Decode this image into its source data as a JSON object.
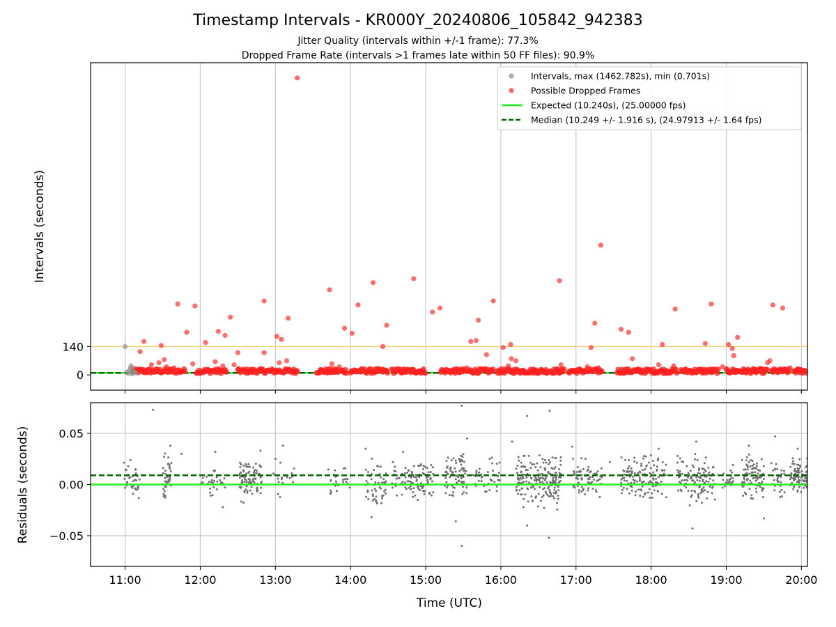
{
  "chart_data": [
    {
      "type": "scatter",
      "title": "Timestamp Intervals - KR000Y_20240806_105842_942383",
      "subtitle_lines": [
        "Jitter Quality (intervals within +/-1 frame): 77.3%",
        "Dropped Frame Rate (intervals >1 frames late within 50 FF files): 90.9%"
      ],
      "ylabel": "Intervals (seconds)",
      "yticks": [
        {
          "value": 0,
          "label": "0"
        },
        {
          "value": 140,
          "label": "140"
        }
      ],
      "ylim": [
        -75,
        1540
      ],
      "xlim": [
        10.54,
        20.08
      ],
      "xticks": [
        {
          "value": 11,
          "label": "11:00"
        },
        {
          "value": 12,
          "label": "12:00"
        },
        {
          "value": 13,
          "label": "13:00"
        },
        {
          "value": 14,
          "label": "14:00"
        },
        {
          "value": 15,
          "label": "15:00"
        },
        {
          "value": 16,
          "label": "16:00"
        },
        {
          "value": 17,
          "label": "17:00"
        },
        {
          "value": 18,
          "label": "18:00"
        },
        {
          "value": 19,
          "label": "19:00"
        },
        {
          "value": 20,
          "label": "20:00"
        }
      ],
      "grid": "vertical",
      "threshold_line": {
        "value": 140,
        "color": "#f5d27a"
      },
      "legend_position": "top-right",
      "legend": [
        {
          "label": "Intervals, max (1462.782s), min (0.701s)",
          "marker": "dot",
          "color": "#909090"
        },
        {
          "label": "Possible Dropped Frames",
          "marker": "dot",
          "color": "#ff3030"
        },
        {
          "label": "Expected (10.240s), (25.00000 fps)",
          "marker": "solid-line",
          "color": "#22ee22"
        },
        {
          "label": "Median (10.249 +/- 1.916 s), (24.97913 +/- 1.64 fps)",
          "marker": "dashed-line",
          "color": "#006400"
        }
      ],
      "lines": [
        {
          "name": "Expected",
          "y": 10.24,
          "style": "solid",
          "color": "#22ee22"
        },
        {
          "name": "Median",
          "y": 10.249,
          "style": "dashed",
          "color": "#006400"
        }
      ],
      "series": [
        {
          "name": "Intervals",
          "color": "#909090",
          "points": [
            [
              11.0,
              140
            ],
            [
              11.02,
              12
            ],
            [
              11.05,
              20
            ],
            [
              11.07,
              35
            ],
            [
              11.08,
              45
            ],
            [
              11.1,
              28
            ],
            [
              11.12,
              15
            ],
            [
              11.04,
              8
            ],
            [
              11.09,
              5
            ],
            [
              11.14,
              10
            ]
          ]
        },
        {
          "name": "Possible Dropped Frames",
          "color": "#ff3030",
          "points": [
            [
              11.25,
              165
            ],
            [
              11.48,
              145
            ],
            [
              11.52,
              75
            ],
            [
              11.7,
              350
            ],
            [
              11.93,
              340
            ],
            [
              11.82,
              210
            ],
            [
              12.07,
              160
            ],
            [
              12.24,
              215
            ],
            [
              12.33,
              195
            ],
            [
              12.4,
              285
            ],
            [
              12.5,
              110
            ],
            [
              12.85,
              365
            ],
            [
              12.85,
              110
            ],
            [
              13.02,
              190
            ],
            [
              13.08,
              175
            ],
            [
              13.17,
              280
            ],
            [
              13.29,
              1465
            ],
            [
              13.72,
              420
            ],
            [
              13.92,
              230
            ],
            [
              14.02,
              205
            ],
            [
              14.1,
              345
            ],
            [
              14.3,
              455
            ],
            [
              14.48,
              245
            ],
            [
              14.43,
              140
            ],
            [
              14.84,
              475
            ],
            [
              15.09,
              310
            ],
            [
              15.19,
              330
            ],
            [
              15.6,
              165
            ],
            [
              15.7,
              270
            ],
            [
              15.81,
              100
            ],
            [
              15.67,
              170
            ],
            [
              15.9,
              365
            ],
            [
              16.03,
              135
            ],
            [
              16.13,
              150
            ],
            [
              16.14,
              80
            ],
            [
              16.2,
              70
            ],
            [
              16.78,
              465
            ],
            [
              17.2,
              135
            ],
            [
              17.25,
              255
            ],
            [
              17.33,
              640
            ],
            [
              17.6,
              225
            ],
            [
              17.7,
              210
            ],
            [
              17.75,
              80
            ],
            [
              18.15,
              150
            ],
            [
              18.32,
              325
            ],
            [
              18.72,
              155
            ],
            [
              18.8,
              350
            ],
            [
              19.03,
              150
            ],
            [
              19.08,
              130
            ],
            [
              19.15,
              185
            ],
            [
              19.1,
              95
            ],
            [
              19.58,
              70
            ],
            [
              19.62,
              345
            ],
            [
              19.75,
              330
            ],
            [
              11.2,
              115
            ],
            [
              11.35,
              50
            ],
            [
              11.45,
              60
            ],
            [
              11.55,
              40
            ],
            [
              11.65,
              35
            ],
            [
              11.9,
              55
            ],
            [
              12.2,
              65
            ],
            [
              12.3,
              45
            ],
            [
              12.45,
              50
            ],
            [
              13.05,
              60
            ],
            [
              13.15,
              70
            ],
            [
              13.75,
              55
            ],
            [
              13.85,
              40
            ],
            [
              14.6,
              30
            ],
            [
              15.55,
              35
            ],
            [
              16.1,
              45
            ],
            [
              16.8,
              50
            ],
            [
              17.15,
              40
            ],
            [
              17.3,
              35
            ],
            [
              18.1,
              50
            ],
            [
              18.3,
              45
            ],
            [
              18.95,
              40
            ],
            [
              19.55,
              60
            ],
            [
              19.85,
              35
            ]
          ]
        }
      ]
    },
    {
      "type": "scatter",
      "ylabel": "Residuals (seconds)",
      "xlabel": "Time (UTC)",
      "ylim": [
        -0.08,
        0.08
      ],
      "xlim": [
        10.54,
        20.08
      ],
      "yticks": [
        {
          "value": 0.05,
          "label": "0.05"
        },
        {
          "value": 0.0,
          "label": "0.00"
        },
        {
          "value": -0.05,
          "label": "−0.05"
        }
      ],
      "xticks": [
        {
          "value": 11,
          "label": "11:00"
        },
        {
          "value": 12,
          "label": "12:00"
        },
        {
          "value": 13,
          "label": "13:00"
        },
        {
          "value": 14,
          "label": "14:00"
        },
        {
          "value": 15,
          "label": "15:00"
        },
        {
          "value": 16,
          "label": "16:00"
        },
        {
          "value": 17,
          "label": "17:00"
        },
        {
          "value": 18,
          "label": "18:00"
        },
        {
          "value": 19,
          "label": "19:00"
        },
        {
          "value": 20,
          "label": "20:00"
        }
      ],
      "grid": "both",
      "lines": [
        {
          "name": "Expected",
          "y": 0.0,
          "style": "solid",
          "color": "#22ee22"
        },
        {
          "name": "Median",
          "y": 0.009,
          "style": "dashed",
          "color": "#006400"
        }
      ],
      "series": [
        {
          "name": "Residuals",
          "color": "#707070",
          "points": [
            [
              11.37,
              0.073
            ],
            [
              15.48,
              0.077
            ],
            [
              16.35,
              0.067
            ],
            [
              16.65,
              0.072
            ],
            [
              15.48,
              -0.06
            ],
            [
              16.64,
              -0.052
            ],
            [
              18.55,
              -0.043
            ],
            [
              15.4,
              -0.036
            ],
            [
              16.35,
              -0.04
            ],
            [
              14.28,
              -0.032
            ],
            [
              19.5,
              -0.033
            ],
            [
              16.3,
              -0.022
            ],
            [
              12.3,
              -0.022
            ],
            [
              13.0,
              0.025
            ],
            [
              13.1,
              0.038
            ],
            [
              11.6,
              0.038
            ],
            [
              11.75,
              0.03
            ],
            [
              12.2,
              0.032
            ],
            [
              12.8,
              0.033
            ],
            [
              14.2,
              0.035
            ],
            [
              14.7,
              0.032
            ],
            [
              15.55,
              0.045
            ],
            [
              16.15,
              0.042
            ],
            [
              16.95,
              0.037
            ],
            [
              17.45,
              0.022
            ],
            [
              18.1,
              0.035
            ],
            [
              18.6,
              0.042
            ],
            [
              19.3,
              0.038
            ],
            [
              19.65,
              0.047
            ],
            [
              19.95,
              0.035
            ]
          ],
          "clusters": [
            {
              "x_from": 10.98,
              "x_to": 11.2,
              "count": 35,
              "y_min": -0.02,
              "y_max": 0.03
            },
            {
              "x_from": 11.5,
              "x_to": 11.62,
              "count": 40,
              "y_min": -0.02,
              "y_max": 0.035
            },
            {
              "x_from": 12.0,
              "x_to": 12.35,
              "count": 30,
              "y_min": -0.02,
              "y_max": 0.025
            },
            {
              "x_from": 12.52,
              "x_to": 12.82,
              "count": 90,
              "y_min": -0.02,
              "y_max": 0.03
            },
            {
              "x_from": 12.95,
              "x_to": 13.28,
              "count": 18,
              "y_min": -0.015,
              "y_max": 0.025
            },
            {
              "x_from": 13.7,
              "x_to": 14.0,
              "count": 28,
              "y_min": -0.015,
              "y_max": 0.025
            },
            {
              "x_from": 14.2,
              "x_to": 14.48,
              "count": 50,
              "y_min": -0.03,
              "y_max": 0.03
            },
            {
              "x_from": 14.55,
              "x_to": 15.1,
              "count": 110,
              "y_min": -0.02,
              "y_max": 0.03
            },
            {
              "x_from": 15.25,
              "x_to": 15.55,
              "count": 80,
              "y_min": -0.025,
              "y_max": 0.04
            },
            {
              "x_from": 15.6,
              "x_to": 16.0,
              "count": 45,
              "y_min": -0.02,
              "y_max": 0.03
            },
            {
              "x_from": 16.2,
              "x_to": 16.8,
              "count": 200,
              "y_min": -0.03,
              "y_max": 0.04
            },
            {
              "x_from": 16.95,
              "x_to": 17.35,
              "count": 70,
              "y_min": -0.02,
              "y_max": 0.03
            },
            {
              "x_from": 17.6,
              "x_to": 18.2,
              "count": 140,
              "y_min": -0.02,
              "y_max": 0.035
            },
            {
              "x_from": 18.35,
              "x_to": 18.85,
              "count": 120,
              "y_min": -0.025,
              "y_max": 0.035
            },
            {
              "x_from": 18.95,
              "x_to": 19.1,
              "count": 25,
              "y_min": -0.015,
              "y_max": 0.025
            },
            {
              "x_from": 19.2,
              "x_to": 19.5,
              "count": 100,
              "y_min": -0.02,
              "y_max": 0.035
            },
            {
              "x_from": 19.6,
              "x_to": 19.78,
              "count": 30,
              "y_min": -0.02,
              "y_max": 0.03
            },
            {
              "x_from": 19.85,
              "x_to": 20.08,
              "count": 90,
              "y_min": -0.015,
              "y_max": 0.03
            }
          ]
        }
      ]
    }
  ]
}
